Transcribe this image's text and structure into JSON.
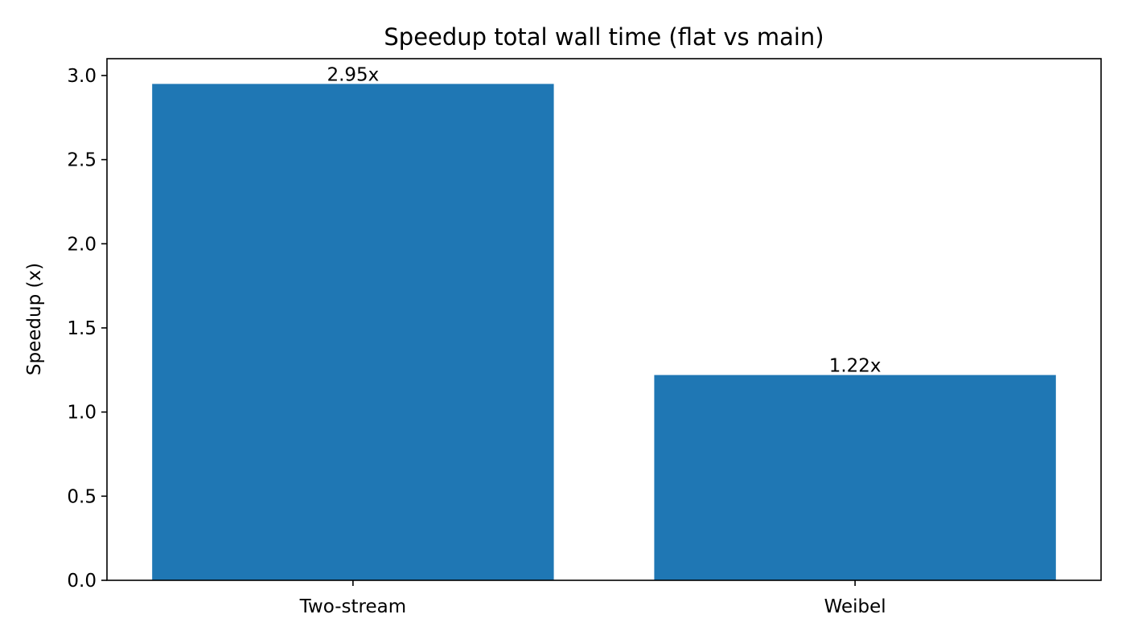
{
  "chart_data": {
    "type": "bar",
    "title": "Speedup total wall time (flat vs main)",
    "xlabel": "",
    "ylabel": "Speedup (x)",
    "categories": [
      "Two-stream",
      "Weibel"
    ],
    "values": [
      2.95,
      1.22
    ],
    "data_labels": [
      "2.95x",
      "1.22x"
    ],
    "ylim": [
      0,
      3.1
    ],
    "yticks": [
      0.0,
      0.5,
      1.0,
      1.5,
      2.0,
      2.5,
      3.0
    ],
    "ytick_labels": [
      "0.0",
      "0.5",
      "1.0",
      "1.5",
      "2.0",
      "2.5",
      "3.0"
    ],
    "grid": false,
    "legend": "none",
    "bar_color": "#1f77b4"
  }
}
